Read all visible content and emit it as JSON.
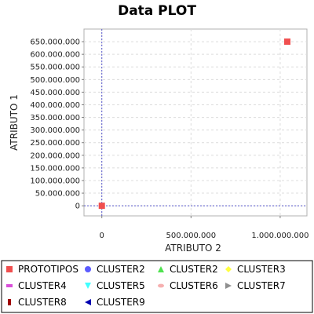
{
  "chart_data": {
    "type": "scatter",
    "title": "Data PLOT",
    "xlabel": "ATRIBUTO 2",
    "ylabel": "ATRIBUTO 1",
    "xlim": [
      -100000000,
      1150000000
    ],
    "ylim": [
      -40000000,
      700000000
    ],
    "x_ticks": [
      0,
      500000000,
      1000000000
    ],
    "x_tick_labels": [
      "0",
      "500.000.000",
      "1.000.000.000"
    ],
    "y_ticks": [
      0,
      50000000,
      100000000,
      150000000,
      200000000,
      250000000,
      300000000,
      350000000,
      400000000,
      450000000,
      500000000,
      550000000,
      600000000,
      650000000
    ],
    "y_tick_labels": [
      "0",
      "50.000.000",
      "100.000.000",
      "150.000.000",
      "200.000.000",
      "250.000.000",
      "300.000.000",
      "350.000.000",
      "400.000.000",
      "450.000.000",
      "500.000.000",
      "550.000.000",
      "600.000.000",
      "650.000.000"
    ],
    "grid": true,
    "legend_position": "bottom",
    "series": [
      {
        "name": "PROTOTIPOS",
        "color": "#f04f4f",
        "marker": "square",
        "points": [
          [
            0,
            0
          ],
          [
            1040000000,
            650000000
          ]
        ]
      },
      {
        "name": "CLUSTER2",
        "color": "#5b5bff",
        "marker": "circle",
        "points": []
      },
      {
        "name": "CLUSTER2",
        "color": "#4fe24f",
        "marker": "triangle-up",
        "points": []
      },
      {
        "name": "CLUSTER3",
        "color": "#ffff40",
        "marker": "diamond",
        "points": []
      },
      {
        "name": "CLUSTER4",
        "color": "#d94fd9",
        "marker": "bar-horizontal",
        "points": []
      },
      {
        "name": "CLUSTER5",
        "color": "#40ffff",
        "marker": "triangle-down",
        "points": []
      },
      {
        "name": "CLUSTER6",
        "color": "#f6b0b0",
        "marker": "ellipse",
        "points": []
      },
      {
        "name": "CLUSTER7",
        "color": "#8f8f8f",
        "marker": "triangle-right",
        "points": []
      },
      {
        "name": "CLUSTER8",
        "color": "#a00000",
        "marker": "bar-vertical",
        "points": []
      },
      {
        "name": "CLUSTER9",
        "color": "#0000b0",
        "marker": "triangle-left",
        "points": []
      }
    ]
  }
}
